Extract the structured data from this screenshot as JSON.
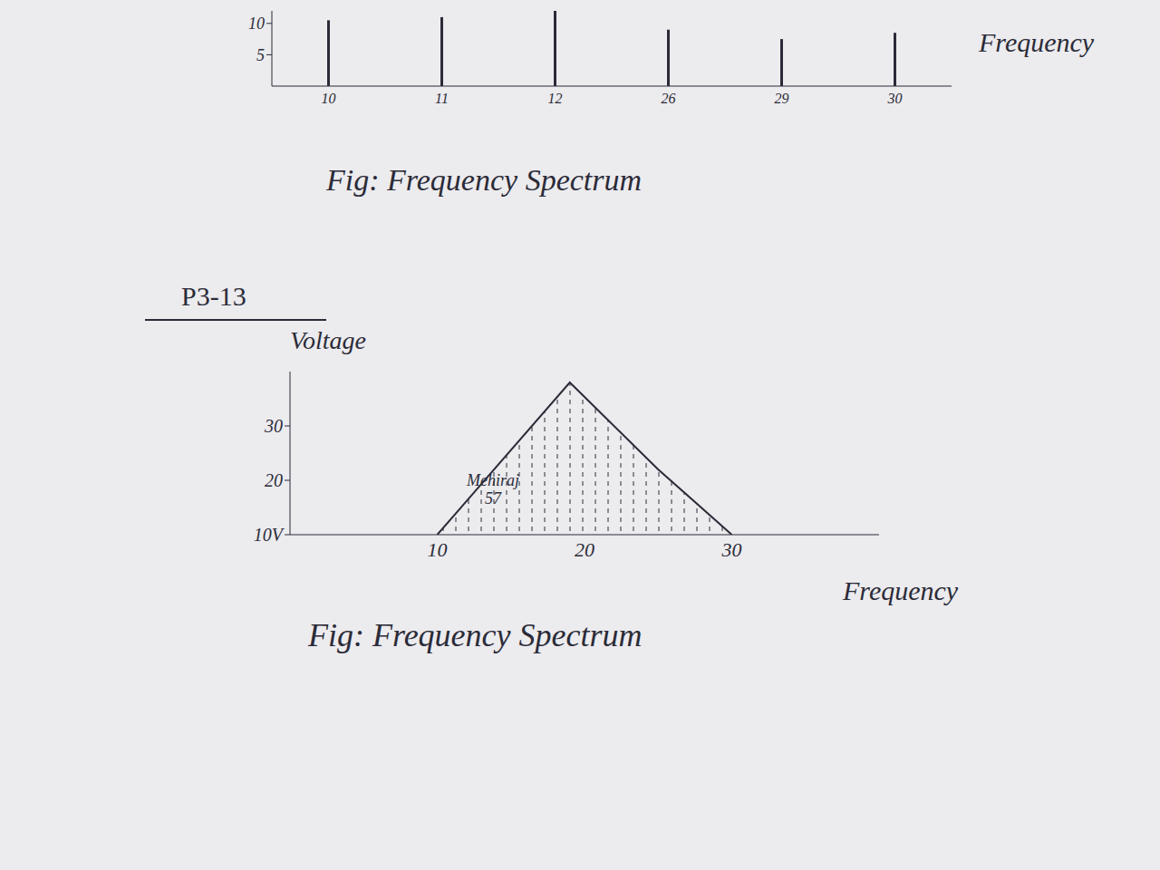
{
  "chart_data": [
    {
      "type": "stem",
      "title": "Fig: Frequency Spectrum",
      "xlabel": "Frequency",
      "categories": [
        "10",
        "11",
        "12",
        "26",
        "29",
        "30"
      ],
      "values": [
        10.5,
        11,
        12,
        9,
        7.5,
        8.5
      ],
      "color": "#2b2b38",
      "ylim": [
        0,
        12
      ],
      "yticks": [
        5,
        10
      ]
    },
    {
      "type": "area",
      "subtitle": "P3-13",
      "title": "Fig: Frequency Spectrum",
      "xlabel": "Frequency",
      "ylabel": "Voltage",
      "annotations": [
        "Mehiraj",
        "57"
      ],
      "x": [
        10,
        19,
        25,
        30
      ],
      "values": [
        10,
        38,
        22,
        10
      ],
      "color": "#2b2b38",
      "xlim": [
        0,
        40
      ],
      "xticks": [
        10,
        20,
        30
      ],
      "ylim": [
        10,
        40
      ],
      "yticks": [
        {
          "value": 10,
          "label": "10V"
        },
        20,
        30
      ]
    }
  ]
}
